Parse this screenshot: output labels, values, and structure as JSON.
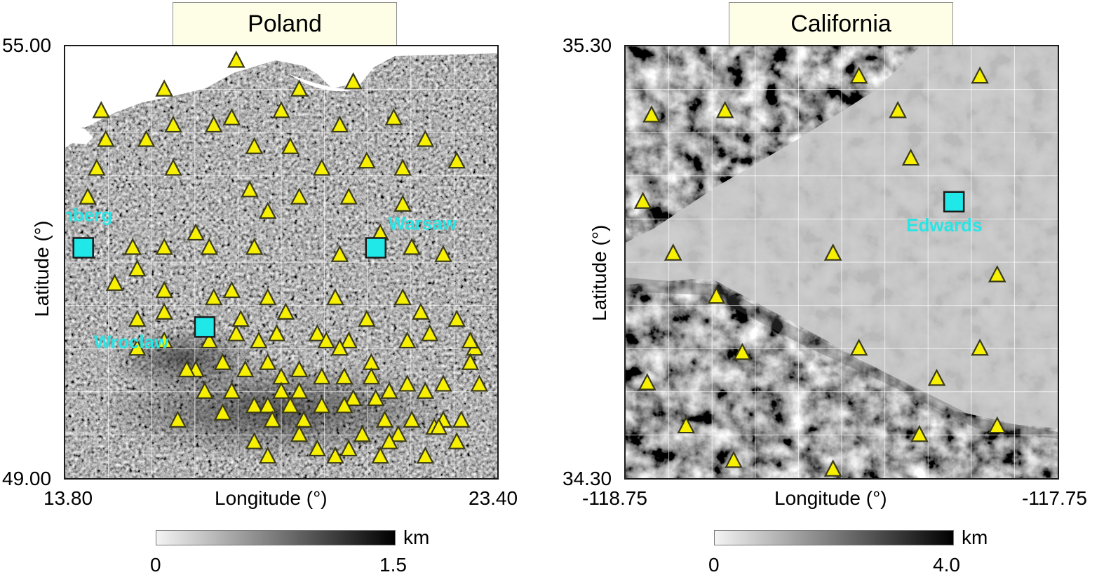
{
  "panels": [
    {
      "title": "Poland",
      "xlabel": "Longitude (°)",
      "ylabel": "Latitude (°)",
      "x_ticks": [
        "13.80",
        "23.40"
      ],
      "y_ticks": [
        "55.00",
        "49.00"
      ],
      "xlim": [
        13.8,
        23.4
      ],
      "ylim": [
        49.0,
        55.0
      ],
      "colorbar": {
        "unit": "km",
        "min_label": "0",
        "max_label": "1.5"
      },
      "cities": [
        {
          "name": "Lindenberg",
          "lon": 14.2,
          "lat": 52.2
        },
        {
          "name": "Warsaw",
          "lon": 20.7,
          "lat": 52.2
        },
        {
          "name": "Wroclaw",
          "lon": 16.9,
          "lat": 51.1
        }
      ],
      "stations": [
        [
          17.6,
          54.8
        ],
        [
          16.0,
          54.4
        ],
        [
          19.0,
          54.4
        ],
        [
          20.2,
          54.5
        ],
        [
          14.6,
          54.1
        ],
        [
          18.6,
          54.1
        ],
        [
          17.5,
          54.0
        ],
        [
          16.2,
          53.9
        ],
        [
          17.1,
          53.9
        ],
        [
          19.9,
          53.9
        ],
        [
          21.1,
          54.0
        ],
        [
          14.7,
          53.7
        ],
        [
          15.6,
          53.7
        ],
        [
          18.0,
          53.6
        ],
        [
          18.8,
          53.6
        ],
        [
          21.8,
          53.7
        ],
        [
          20.5,
          53.4
        ],
        [
          22.5,
          53.4
        ],
        [
          16.2,
          53.3
        ],
        [
          19.5,
          53.3
        ],
        [
          21.3,
          53.3
        ],
        [
          17.9,
          53.0
        ],
        [
          19.0,
          52.9
        ],
        [
          20.1,
          52.9
        ],
        [
          14.3,
          52.9
        ],
        [
          21.3,
          52.8
        ],
        [
          18.3,
          52.7
        ],
        [
          16.7,
          52.4
        ],
        [
          20.8,
          52.4
        ],
        [
          15.3,
          52.2
        ],
        [
          16.0,
          52.2
        ],
        [
          17.0,
          52.2
        ],
        [
          18.0,
          52.2
        ],
        [
          21.5,
          52.2
        ],
        [
          22.2,
          52.1
        ],
        [
          19.9,
          52.1
        ],
        [
          15.4,
          51.9
        ],
        [
          14.9,
          51.7
        ],
        [
          16.0,
          51.6
        ],
        [
          17.5,
          51.6
        ],
        [
          19.8,
          51.5
        ],
        [
          17.1,
          51.5
        ],
        [
          18.3,
          51.5
        ],
        [
          21.3,
          51.5
        ],
        [
          16.0,
          51.3
        ],
        [
          18.7,
          51.3
        ],
        [
          20.5,
          51.2
        ],
        [
          22.5,
          51.2
        ],
        [
          17.6,
          51.0
        ],
        [
          18.5,
          51.0
        ],
        [
          19.4,
          51.0
        ],
        [
          21.9,
          51.0
        ],
        [
          16.0,
          50.9
        ],
        [
          17.0,
          50.9
        ],
        [
          18.1,
          50.9
        ],
        [
          20.1,
          50.9
        ],
        [
          21.4,
          50.9
        ],
        [
          15.4,
          50.8
        ],
        [
          19.9,
          50.8
        ],
        [
          22.9,
          50.8
        ],
        [
          17.3,
          50.6
        ],
        [
          18.3,
          50.6
        ],
        [
          19.0,
          50.5
        ],
        [
          20.6,
          50.6
        ],
        [
          22.8,
          50.6
        ],
        [
          16.7,
          50.5
        ],
        [
          17.8,
          50.5
        ],
        [
          18.6,
          50.4
        ],
        [
          19.5,
          50.4
        ],
        [
          20.0,
          50.4
        ],
        [
          20.6,
          50.4
        ],
        [
          21.4,
          50.3
        ],
        [
          22.2,
          50.3
        ],
        [
          23.0,
          50.3
        ],
        [
          16.9,
          50.2
        ],
        [
          17.5,
          50.2
        ],
        [
          18.6,
          50.2
        ],
        [
          19.0,
          50.2
        ],
        [
          20.2,
          50.1
        ],
        [
          20.7,
          50.1
        ],
        [
          21.0,
          50.2
        ],
        [
          21.8,
          50.2
        ],
        [
          18.0,
          50.0
        ],
        [
          18.3,
          50.0
        ],
        [
          18.8,
          50.0
        ],
        [
          19.5,
          50.0
        ],
        [
          20.0,
          50.0
        ],
        [
          17.3,
          49.9
        ],
        [
          18.4,
          49.8
        ],
        [
          19.1,
          49.8
        ],
        [
          20.9,
          49.8
        ],
        [
          21.5,
          49.8
        ],
        [
          22.2,
          49.8
        ],
        [
          22.6,
          49.8
        ],
        [
          16.3,
          49.8
        ],
        [
          18.0,
          49.5
        ],
        [
          19.0,
          49.6
        ],
        [
          20.4,
          49.6
        ],
        [
          21.2,
          49.6
        ],
        [
          22.0,
          49.7
        ],
        [
          19.4,
          49.4
        ],
        [
          20.1,
          49.4
        ],
        [
          21.0,
          49.5
        ],
        [
          22.5,
          49.5
        ],
        [
          18.3,
          49.3
        ],
        [
          19.8,
          49.3
        ],
        [
          20.8,
          49.3
        ],
        [
          21.8,
          49.3
        ],
        [
          22.1,
          49.7
        ],
        [
          16.5,
          50.5
        ],
        [
          19.6,
          50.9
        ],
        [
          17.7,
          51.2
        ],
        [
          15.4,
          51.2
        ],
        [
          21.7,
          51.3
        ],
        [
          22.8,
          50.9
        ],
        [
          14.5,
          53.3
        ]
      ]
    },
    {
      "title": "California",
      "xlabel": "Longitude (°)",
      "ylabel": "Latitude (°)",
      "x_ticks": [
        "-118.75",
        "-117.75"
      ],
      "y_ticks": [
        "35.30",
        "34.30"
      ],
      "xlim": [
        -118.75,
        -117.75
      ],
      "ylim": [
        34.3,
        35.3
      ],
      "colorbar": {
        "unit": "km",
        "min_label": "0",
        "max_label": "4.0"
      },
      "cities": [
        {
          "name": "Edwards",
          "lon": -117.99,
          "lat": 34.94
        }
      ],
      "stations": [
        [
          -118.21,
          35.23
        ],
        [
          -117.93,
          35.23
        ],
        [
          -118.69,
          35.14
        ],
        [
          -118.52,
          35.15
        ],
        [
          -118.12,
          35.15
        ],
        [
          -118.09,
          35.04
        ],
        [
          -118.71,
          34.94
        ],
        [
          -118.64,
          34.82
        ],
        [
          -118.27,
          34.82
        ],
        [
          -117.89,
          34.77
        ],
        [
          -118.54,
          34.72
        ],
        [
          -118.21,
          34.6
        ],
        [
          -118.48,
          34.59
        ],
        [
          -117.93,
          34.6
        ],
        [
          -118.03,
          34.53
        ],
        [
          -118.7,
          34.52
        ],
        [
          -118.61,
          34.42
        ],
        [
          -118.07,
          34.4
        ],
        [
          -117.89,
          34.42
        ],
        [
          -118.5,
          34.34
        ],
        [
          -118.27,
          34.32
        ]
      ]
    }
  ]
}
